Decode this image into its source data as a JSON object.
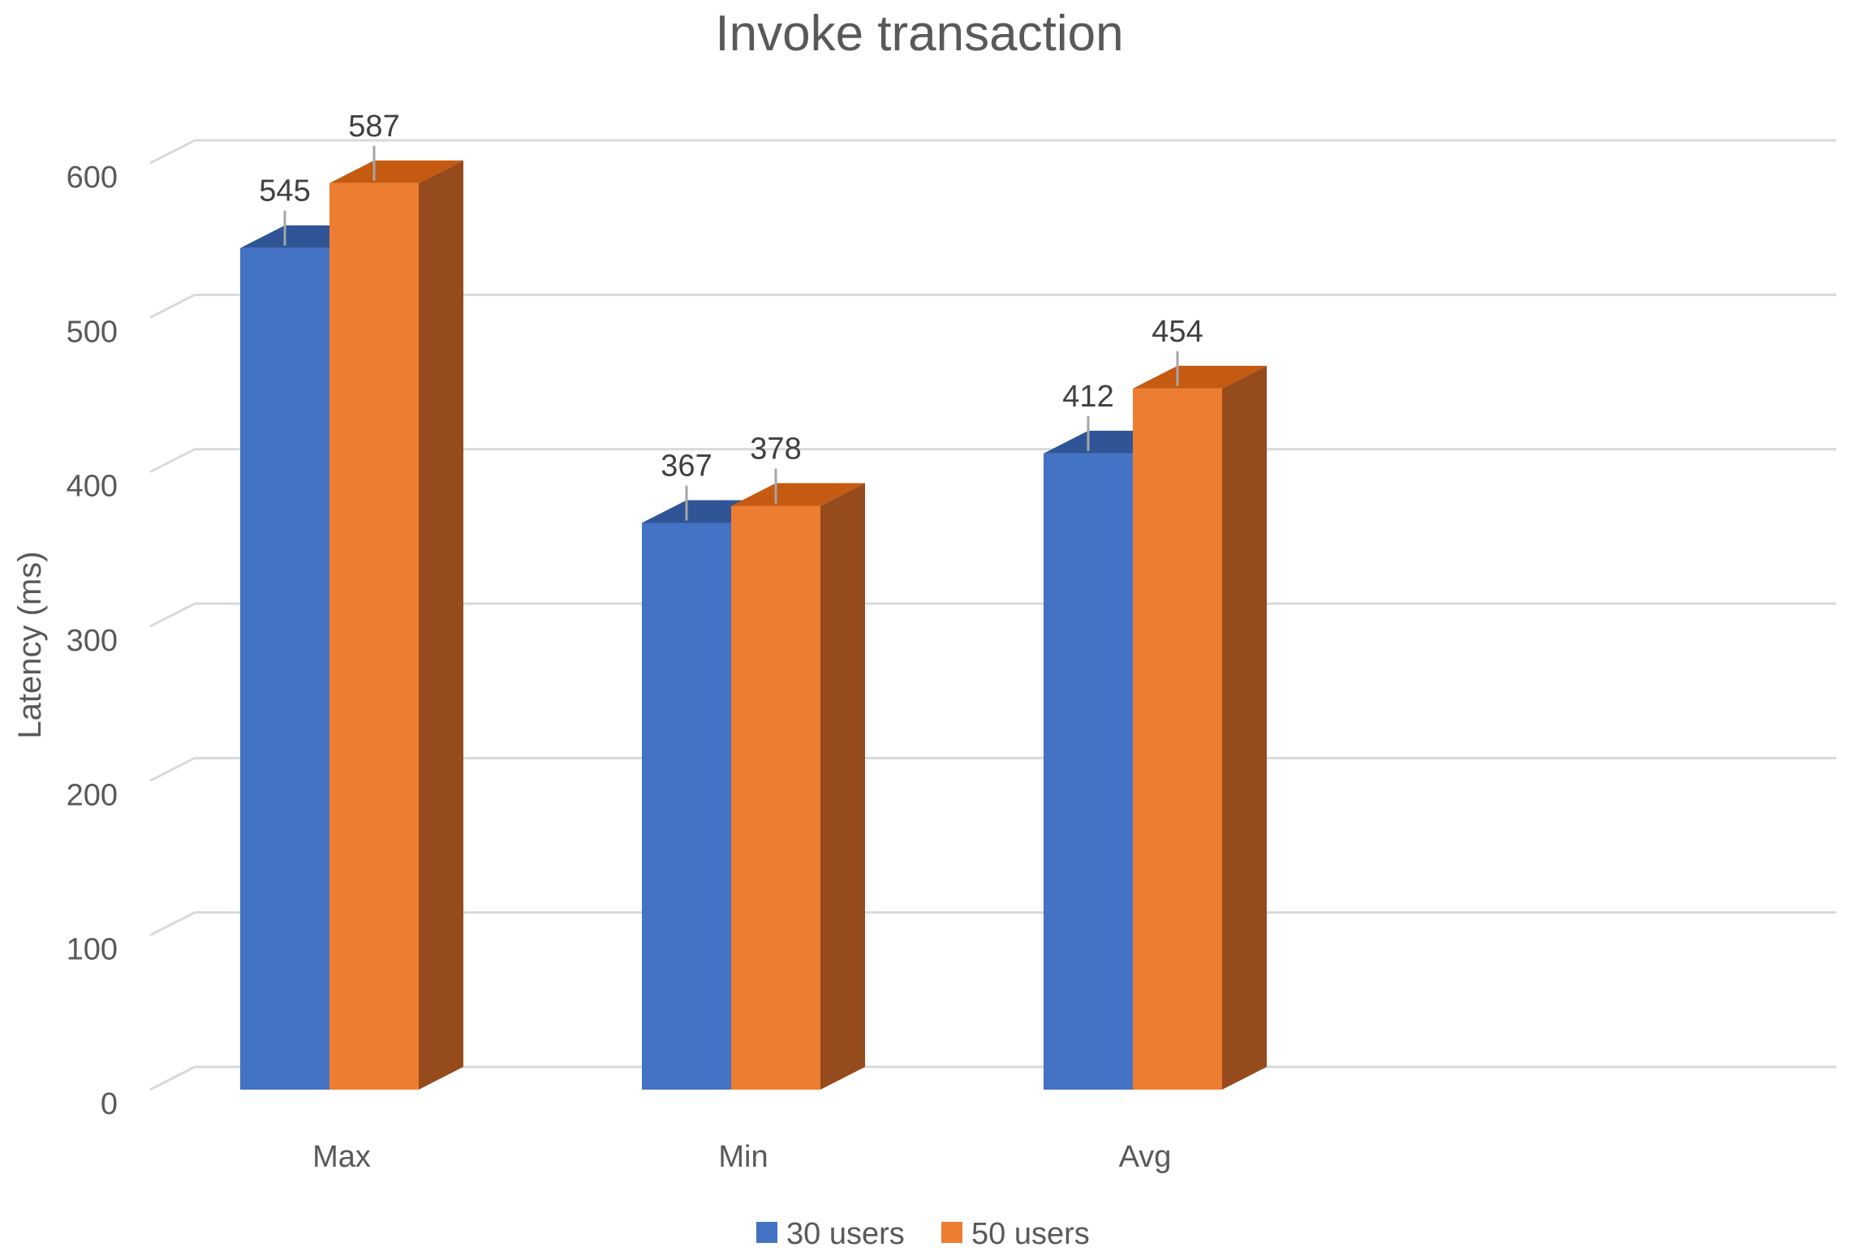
{
  "chart_data": {
    "type": "bar",
    "title": "Invoke transaction",
    "xlabel": "",
    "ylabel": "Latency (ms)",
    "categories": [
      "Max",
      "Min",
      "Avg"
    ],
    "series": [
      {
        "name": "30 users",
        "values": [
          545,
          367,
          412
        ]
      },
      {
        "name": "50 users",
        "values": [
          587,
          378,
          454
        ]
      }
    ],
    "ylim": [
      0,
      600
    ],
    "yticks": [
      0,
      100,
      200,
      300,
      400,
      500,
      600
    ],
    "grid": true,
    "legend_position": "bottom",
    "style": "3d-clustered-column",
    "colors": {
      "series_front": [
        "#4472C4",
        "#ED7D31"
      ],
      "series_side": [
        "#2F5597",
        "#964B1C"
      ],
      "series_top": [
        "#2F5597",
        "#C55A11"
      ],
      "grid": "#D9D9D9",
      "text": "#595959"
    }
  }
}
